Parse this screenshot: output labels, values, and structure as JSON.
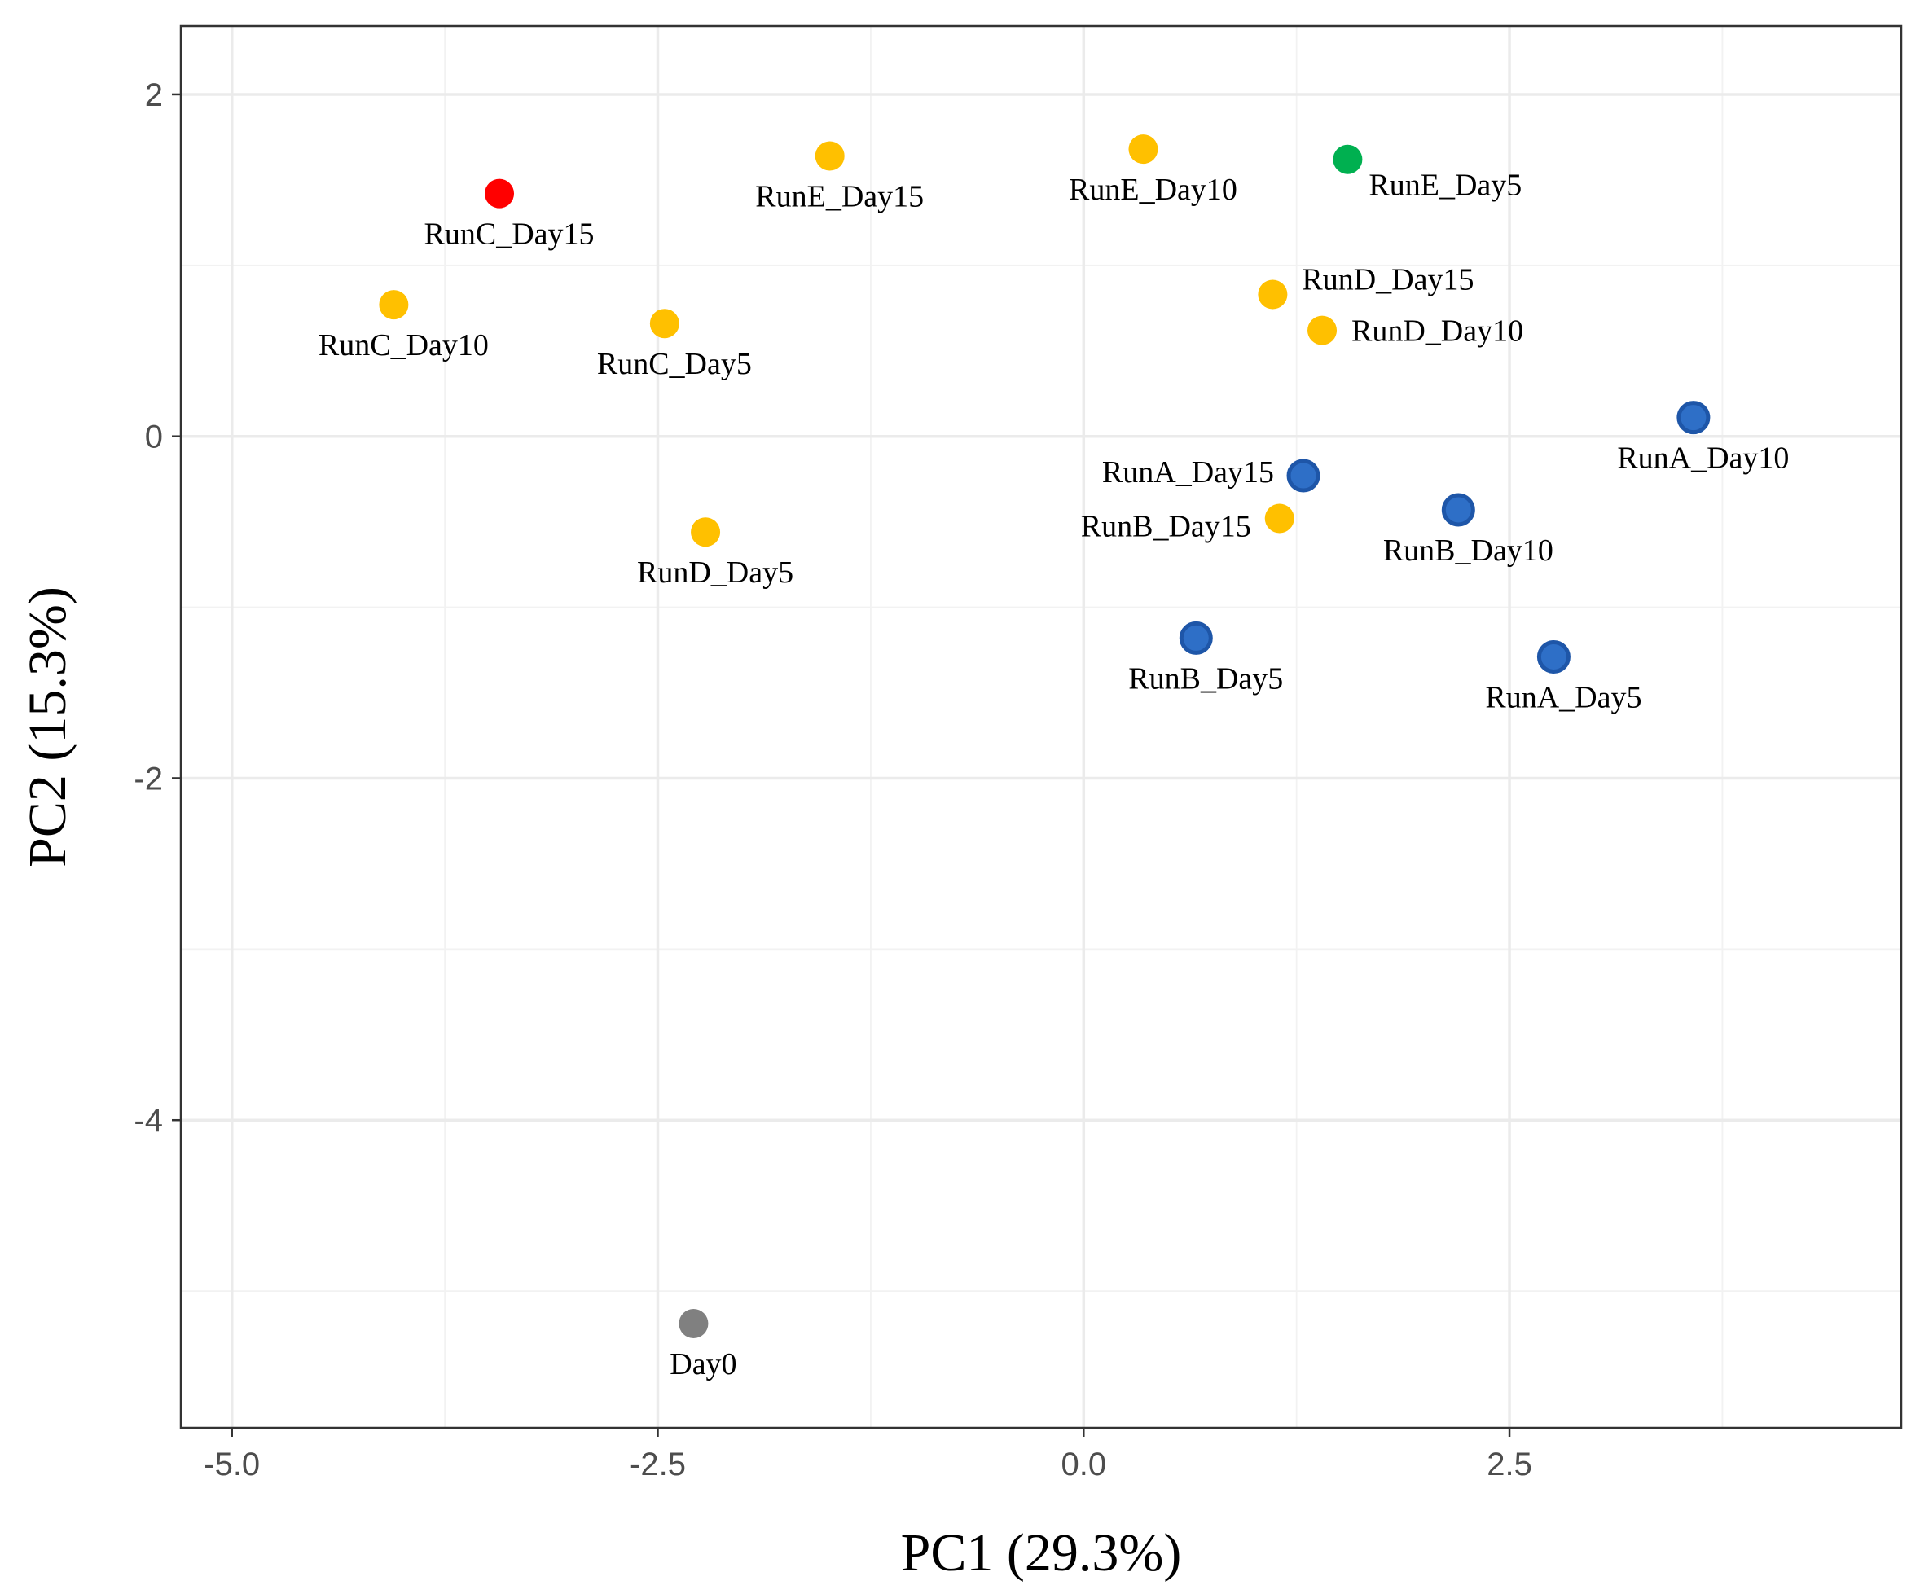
{
  "chart_data": {
    "type": "scatter",
    "xlabel": "PC1 (29.3%)",
    "ylabel": "PC2 (15.3%)",
    "xlim": [
      -5.3,
      4.8
    ],
    "ylim": [
      -5.8,
      2.4
    ],
    "x_ticks": [
      -5.0,
      -2.5,
      0.0,
      2.5
    ],
    "x_tick_labels": [
      "-5.0",
      "-2.5",
      "0.0",
      "2.5"
    ],
    "y_ticks": [
      -4,
      -2,
      0,
      2
    ],
    "y_tick_labels": [
      "-4",
      "-2",
      "0",
      "2"
    ],
    "grid": true,
    "colors": {
      "red": "#ff0000",
      "orange": "#ffc000",
      "green": "#00b050",
      "blue": "#2e6fc7",
      "blue_edge": "#1e56a8",
      "gray": "#808080"
    },
    "points": [
      {
        "label": "RunC_Day15",
        "x": -3.43,
        "y": 1.42,
        "color": "red",
        "label_pos": "below"
      },
      {
        "label": "RunE_Day15",
        "x": -1.49,
        "y": 1.64,
        "color": "orange",
        "label_pos": "below"
      },
      {
        "label": "RunE_Day10",
        "x": 0.35,
        "y": 1.68,
        "color": "orange",
        "label_pos": "below"
      },
      {
        "label": "RunE_Day5",
        "x": 1.55,
        "y": 1.62,
        "color": "green",
        "label_pos": "right-below"
      },
      {
        "label": "RunC_Day10",
        "x": -4.05,
        "y": 0.77,
        "color": "orange",
        "label_pos": "below"
      },
      {
        "label": "RunC_Day5",
        "x": -2.46,
        "y": 0.66,
        "color": "orange",
        "label_pos": "below"
      },
      {
        "label": "RunD_Day15",
        "x": 1.11,
        "y": 0.83,
        "color": "orange",
        "label_pos": "right-above"
      },
      {
        "label": "RunD_Day10",
        "x": 1.4,
        "y": 0.62,
        "color": "orange",
        "label_pos": "right"
      },
      {
        "label": "RunA_Day10",
        "x": 3.58,
        "y": 0.11,
        "color": "blue",
        "label_pos": "below"
      },
      {
        "label": "RunA_Day15",
        "x": 1.29,
        "y": -0.23,
        "color": "blue",
        "label_pos": "left-above"
      },
      {
        "label": "RunB_Day15",
        "x": 1.15,
        "y": -0.48,
        "color": "orange",
        "label_pos": "left"
      },
      {
        "label": "RunB_Day10",
        "x": 2.2,
        "y": -0.43,
        "color": "blue",
        "label_pos": "below"
      },
      {
        "label": "RunD_Day5",
        "x": -2.22,
        "y": -0.56,
        "color": "orange",
        "label_pos": "below"
      },
      {
        "label": "RunB_Day5",
        "x": 0.66,
        "y": -1.18,
        "color": "blue",
        "label_pos": "below"
      },
      {
        "label": "RunA_Day5",
        "x": 2.76,
        "y": -1.29,
        "color": "blue",
        "label_pos": "below"
      },
      {
        "label": "Day0",
        "x": -2.29,
        "y": -5.19,
        "color": "gray",
        "label_pos": "below"
      }
    ]
  }
}
